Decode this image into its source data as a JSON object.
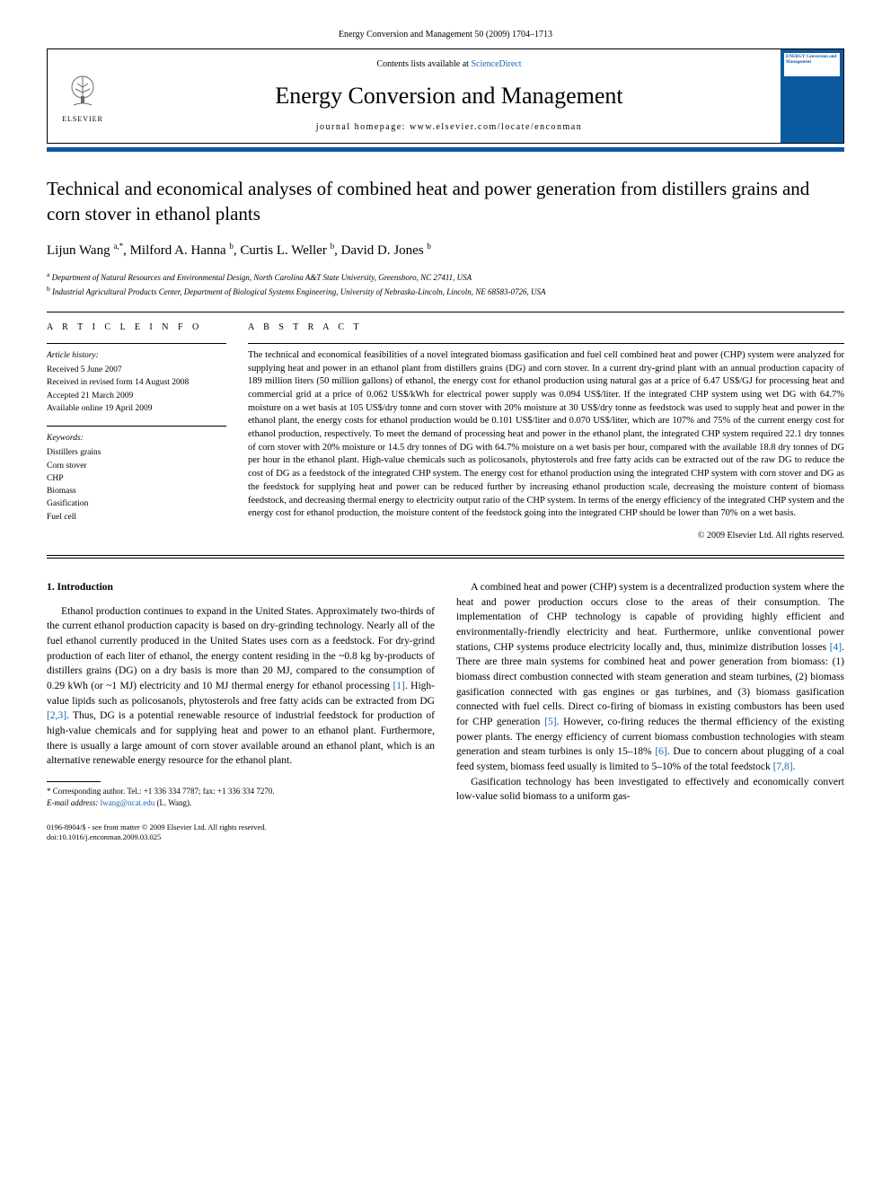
{
  "journal_ref": "Energy Conversion and Management 50 (2009) 1704–1713",
  "header": {
    "contents_prefix": "Contents lists available at ",
    "contents_link": "ScienceDirect",
    "journal_title": "Energy Conversion and Management",
    "homepage_prefix": "journal homepage: ",
    "homepage": "www.elsevier.com/locate/enconman",
    "publisher": "ELSEVIER",
    "cover_text": "ENERGY Conversion and Management"
  },
  "title": "Technical and economical analyses of combined heat and power generation from distillers grains and corn stover in ethanol plants",
  "authors_html": "Lijun Wang <sup>a,*</sup>, Milford A. Hanna <sup>b</sup>, Curtis L. Weller <sup>b</sup>, David D. Jones <sup>b</sup>",
  "affiliations": {
    "a": "Department of Natural Resources and Environmental Design, North Carolina A&T State University, Greensboro, NC 27411, USA",
    "b": "Industrial Agricultural Products Center, Department of Biological Systems Engineering, University of Nebraska-Lincoln, Lincoln, NE 68583-0726, USA"
  },
  "article_info": {
    "heading": "A R T I C L E   I N F O",
    "history_label": "Article history:",
    "received": "Received 5 June 2007",
    "revised": "Received in revised form 14 August 2008",
    "accepted": "Accepted 21 March 2009",
    "online": "Available online 19 April 2009",
    "keywords_label": "Keywords:",
    "keywords": [
      "Distillers grains",
      "Corn stover",
      "CHP",
      "Biomass",
      "Gasification",
      "Fuel cell"
    ]
  },
  "abstract": {
    "heading": "A B S T R A C T",
    "text": "The technical and economical feasibilities of a novel integrated biomass gasification and fuel cell combined heat and power (CHP) system were analyzed for supplying heat and power in an ethanol plant from distillers grains (DG) and corn stover. In a current dry-grind plant with an annual production capacity of 189 million liters (50 million gallons) of ethanol, the energy cost for ethanol production using natural gas at a price of 6.47 US$/GJ for processing heat and commercial grid at a price of 0.062 US$/kWh for electrical power supply was 0.094 US$/liter. If the integrated CHP system using wet DG with 64.7% moisture on a wet basis at 105 US$/dry tonne and corn stover with 20% moisture at 30 US$/dry tonne as feedstock was used to supply heat and power in the ethanol plant, the energy costs for ethanol production would be 0.101 US$/liter and 0.070 US$/liter, which are 107% and 75% of the current energy cost for ethanol production, respectively. To meet the demand of processing heat and power in the ethanol plant, the integrated CHP system required 22.1 dry tonnes of corn stover with 20% moisture or 14.5 dry tonnes of DG with 64.7% moisture on a wet basis per hour, compared with the available 18.8 dry tonnes of DG per hour in the ethanol plant. High-value chemicals such as policosanols, phytosterols and free fatty acids can be extracted out of the raw DG to reduce the cost of DG as a feedstock of the integrated CHP system. The energy cost for ethanol production using the integrated CHP system with corn stover and DG as the feedstock for supplying heat and power can be reduced further by increasing ethanol production scale, decreasing the moisture content of biomass feedstock, and decreasing thermal energy to electricity output ratio of the CHP system. In terms of the energy efficiency of the integrated CHP system and the energy cost for ethanol production, the moisture content of the feedstock going into the integrated CHP should be lower than 70% on a wet basis.",
    "copyright": "© 2009 Elsevier Ltd. All rights reserved."
  },
  "body": {
    "section1_head": "1. Introduction",
    "p1": "Ethanol production continues to expand in the United States. Approximately two-thirds of the current ethanol production capacity is based on dry-grinding technology. Nearly all of the fuel ethanol currently produced in the United States uses corn as a feedstock. For dry-grind production of each liter of ethanol, the energy content residing in the ~0.8 kg by-products of distillers grains (DG) on a dry basis is more than 20 MJ, compared to the consumption of 0.29 kWh (or ~1 MJ) electricity and 10 MJ thermal energy for ethanol processing ",
    "p1_ref1": "[1]",
    "p1_cont": ". High-value lipids such as policosanols, phytosterols and free fatty acids can be extracted from DG ",
    "p1_ref2": "[2,3]",
    "p1_end": ". Thus, DG is a potential renewable resource of industrial feedstock for production of high-value chemicals and for supplying heat and power to an ethanol plant. Furthermore, there is usually a large amount of corn stover available around an ethanol plant, which is an alternative renewable energy resource for the ethanol plant.",
    "p2": "A combined heat and power (CHP) system is a decentralized production system where the heat and power production occurs close to the areas of their consumption. The implementation of CHP technology is capable of providing highly efficient and environmentally-friendly electricity and heat. Furthermore, unlike conventional power stations, CHP systems produce electricity locally and, thus, minimize distribution losses ",
    "p2_ref1": "[4]",
    "p2_cont1": ". There are three main systems for combined heat and power generation from biomass: (1) biomass direct combustion connected with steam generation and steam turbines, (2) biomass gasification connected with gas engines or gas turbines, and (3) biomass gasification connected with fuel cells. Direct co-firing of biomass in existing combustors has been used for CHP generation ",
    "p2_ref2": "[5]",
    "p2_cont2": ". However, co-firing reduces the thermal efficiency of the existing power plants. The energy efficiency of current biomass combustion technologies with steam generation and steam turbines is only 15–18% ",
    "p2_ref3": "[6]",
    "p2_cont3": ". Due to concern about plugging of a coal feed system, biomass feed usually is limited to 5–10% of the total feedstock ",
    "p2_ref4": "[7,8]",
    "p2_end": ".",
    "p3": "Gasification technology has been investigated to effectively and economically convert low-value solid biomass to a uniform gas-"
  },
  "footnote": {
    "corr": "* Corresponding author. Tel.: +1 336 334 7787; fax: +1 336 334 7270.",
    "email_label": "E-mail address: ",
    "email": "lwang@ncat.edu",
    "email_who": " (L. Wang)."
  },
  "bottom": {
    "issn": "0196-8904/$ - see front matter © 2009 Elsevier Ltd. All rights reserved.",
    "doi": "doi:10.1016/j.enconman.2009.03.025"
  }
}
